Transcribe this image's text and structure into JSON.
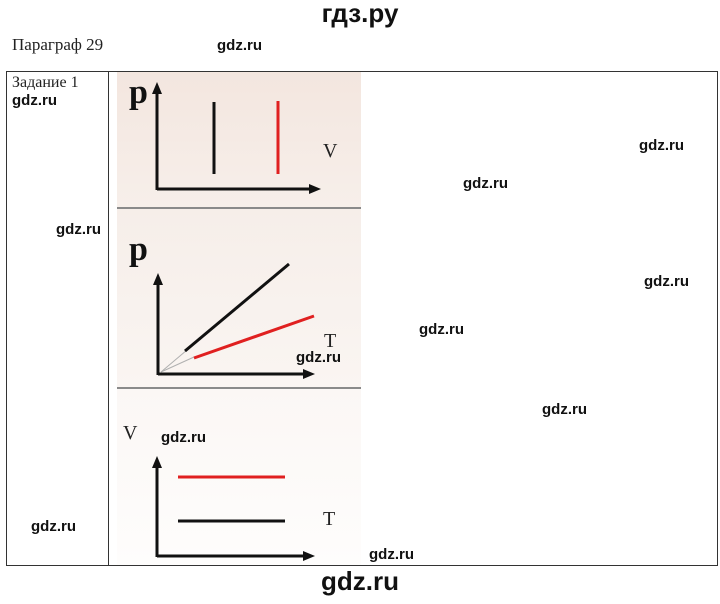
{
  "header": {
    "site_title": "гдз.ру"
  },
  "footer": {
    "site_title": "gdz.ru"
  },
  "page": {
    "paragraph_title": "Параграф 29",
    "task_label": "Задание 1"
  },
  "watermark": {
    "text": "gdz.ru"
  },
  "graphs": [
    {
      "y_axis_label": "p",
      "x_axis_label": "V"
    },
    {
      "y_axis_label": "p",
      "x_axis_label": "T"
    },
    {
      "y_axis_label": "V",
      "x_axis_label": "T"
    }
  ],
  "colors": {
    "red_line": "#e02020",
    "black_line": "#111111",
    "panel_bg": "#f3e6df"
  }
}
